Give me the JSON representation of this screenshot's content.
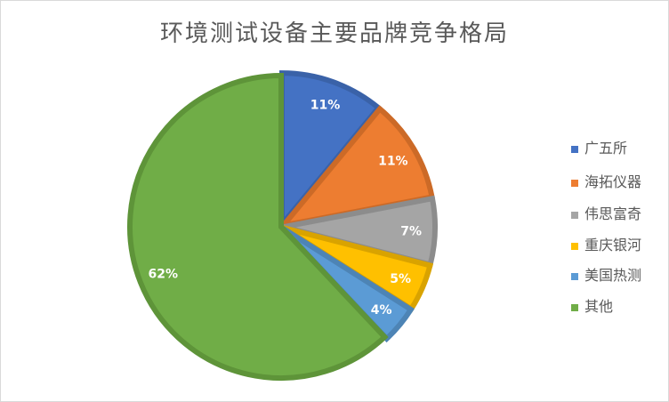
{
  "chart_data": {
    "type": "pie",
    "title": "环境测试设备主要品牌竞争格局",
    "categories": [
      "广五所",
      "海拓仪器",
      "伟思富奇",
      "重庆银河",
      "美国热测",
      "其他"
    ],
    "values": [
      11,
      11,
      7,
      5,
      4,
      62
    ],
    "data_labels": [
      "11%",
      "11%",
      "7%",
      "5%",
      "4%",
      "62%"
    ],
    "colors": [
      "#4472C4",
      "#ED7D31",
      "#A5A5A5",
      "#FFC000",
      "#5B9BD5",
      "#70AD47"
    ],
    "border_colors": [
      "#3A62A8",
      "#CC6A27",
      "#8C8C8C",
      "#D9A300",
      "#4D84B5",
      "#5E9439"
    ],
    "legend_placement": "right",
    "start_angle": "12 o'clock, clockwise"
  }
}
